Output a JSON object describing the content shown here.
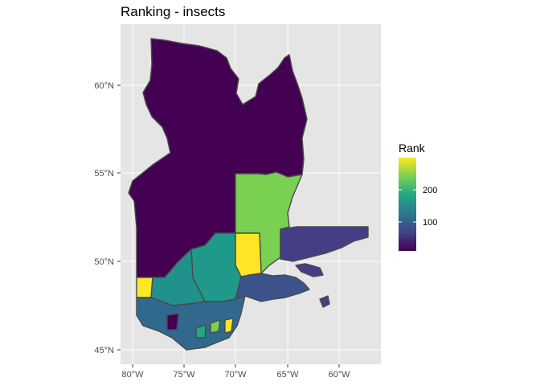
{
  "title": "Ranking - insects",
  "map": {
    "background": "#e5e5e5",
    "gridColor": "#ffffff",
    "borderColor": "#4a4a4a",
    "yTicks": [
      "45°N",
      "50°N",
      "55°N",
      "60°N"
    ],
    "xTicks": [
      "80°W",
      "75°W",
      "70°W",
      "65°W",
      "60°W"
    ]
  },
  "legend": {
    "title": "Rank",
    "labels": [
      "200",
      "100"
    ],
    "colors": [
      "#fde725",
      "#7ad151",
      "#22a884",
      "#2a788e",
      "#414487",
      "#440154"
    ]
  },
  "regions": [
    {
      "id": "north",
      "color": "#440154"
    },
    {
      "id": "east-coast",
      "color": "#433e85"
    },
    {
      "id": "central-east",
      "color": "#7ad151"
    },
    {
      "id": "yellow-block",
      "color": "#fde725"
    },
    {
      "id": "central",
      "color": "#1f9a8a"
    },
    {
      "id": "south-west",
      "color": "#21918c"
    },
    {
      "id": "gaspe",
      "color": "#3b528b"
    },
    {
      "id": "south",
      "color": "#31688e"
    }
  ]
}
